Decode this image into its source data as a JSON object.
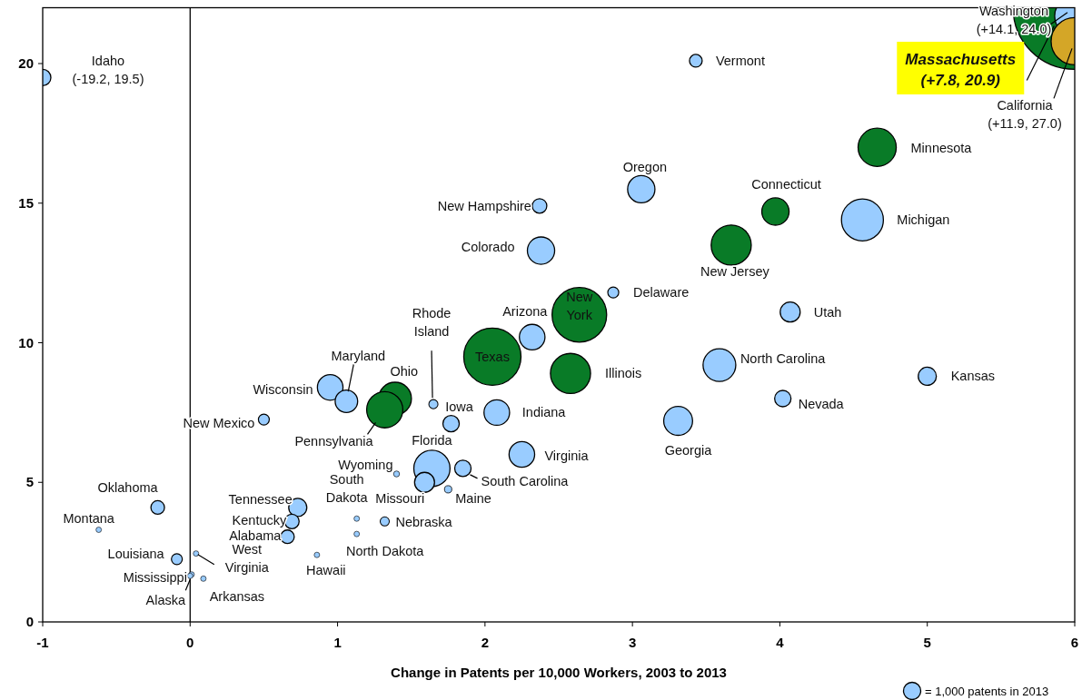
{
  "chart_data": {
    "type": "bubble",
    "xlabel": "Change in Patents per 10,000 Workers, 2003 to 2013",
    "xlim": [
      -1,
      6
    ],
    "xticks": [
      -1,
      0,
      1,
      2,
      3,
      4,
      5,
      6
    ],
    "ylim": [
      0,
      22
    ],
    "yticks": [
      0,
      5,
      10,
      15,
      20
    ],
    "ref_lines": [
      {
        "axis": "x",
        "value": 0,
        "color": "#000000"
      }
    ],
    "size_legend": [
      {
        "value": 1000,
        "label": "=  1,000 patents in 2013"
      }
    ],
    "series": [
      {
        "x": [
          6,
          6,
          6,
          -1,
          3.43,
          3.06,
          2.37,
          2.38,
          2.87,
          2.64,
          2.32,
          2.05,
          4.66,
          3.97,
          3.67,
          4.56,
          4.07,
          2.58,
          3.59,
          5.0,
          4.02,
          3.31,
          0.95,
          1.06,
          1.39,
          1.32,
          1.65,
          1.77,
          2.08,
          0.5,
          2.25,
          1.64,
          1.85,
          1.59,
          1.75,
          1.4,
          -0.22,
          -0.62,
          0.73,
          0.69,
          0.66,
          1.13,
          1.32,
          1.13,
          0.86,
          -0.09,
          0.04,
          0.01,
          0.09,
          0.0
        ],
        "values": [
          22,
          21.7,
          20.8,
          19.5,
          20.1,
          15.5,
          14.9,
          13.3,
          11.8,
          11.0,
          10.2,
          9.5,
          17.0,
          14.7,
          13.5,
          14.4,
          11.1,
          8.9,
          9.2,
          8.8,
          8.0,
          7.2,
          8.4,
          7.9,
          8.0,
          7.6,
          7.8,
          7.1,
          7.5,
          7.25,
          6.0,
          5.5,
          5.5,
          5.0,
          4.75,
          5.3,
          4.1,
          3.3,
          4.1,
          3.6,
          3.05,
          3.7,
          3.6,
          3.15,
          2.4,
          2.25,
          2.45,
          1.7,
          1.55,
          1.65
        ],
        "sizes": [
          51000,
          5400,
          7500,
          900,
          540,
          2500,
          710,
          2500,
          400,
          10000,
          2200,
          11000,
          4900,
          2500,
          5400,
          5900,
          1340,
          5400,
          3600,
          1100,
          900,
          2800,
          2200,
          1700,
          3600,
          4400,
          280,
          900,
          2200,
          400,
          2200,
          4400,
          900,
          1340,
          180,
          120,
          620,
          100,
          1100,
          710,
          620,
          100,
          280,
          100,
          100,
          400,
          100,
          100,
          100,
          100
        ],
        "colors": [
          "#097b27",
          "#99ccff",
          "#d4a627",
          "#99ccff",
          "#99ccff",
          "#99ccff",
          "#99ccff",
          "#99ccff",
          "#99ccff",
          "#097b27",
          "#99ccff",
          "#097b27",
          "#097b27",
          "#097b27",
          "#097b27",
          "#99ccff",
          "#99ccff",
          "#097b27",
          "#99ccff",
          "#99ccff",
          "#99ccff",
          "#99ccff",
          "#99ccff",
          "#99ccff",
          "#097b27",
          "#097b27",
          "#99ccff",
          "#99ccff",
          "#99ccff",
          "#99ccff",
          "#99ccff",
          "#99ccff",
          "#99ccff",
          "#99ccff",
          "#99ccff",
          "#99ccff",
          "#99ccff",
          "#99ccff",
          "#99ccff",
          "#99ccff",
          "#99ccff",
          "#99ccff",
          "#99ccff",
          "#99ccff",
          "#99ccff",
          "#99ccff",
          "#99ccff",
          "#99ccff",
          "#99ccff",
          "#99ccff"
        ]
      }
    ],
    "annotations": [
      {
        "text": "Massachusetts\n(+7.8, 20.9)",
        "x": 5.86,
        "y": 21.35
      },
      {
        "text": "Washington\n(+14.1, 24.0)",
        "x": 6,
        "y": 21.7
      },
      {
        "text": "California\n(+11.9, 27.0)",
        "x": 6,
        "y": 20.8
      },
      {
        "text": "Idaho\n(-19.2, 19.5)",
        "x": -1,
        "y": 19.5
      },
      {
        "text": "Vermont",
        "x": 3.43,
        "y": 20.1
      },
      {
        "text": "Oregon",
        "x": 3.06,
        "y": 15.5
      },
      {
        "text": "New Hampshire",
        "x": 2.37,
        "y": 14.9
      },
      {
        "text": "Colorado",
        "x": 2.38,
        "y": 13.3
      },
      {
        "text": "Delaware",
        "x": 2.87,
        "y": 11.8
      },
      {
        "text": "New\nYork",
        "x": 2.64,
        "y": 11.0
      },
      {
        "text": "Arizona",
        "x": 2.32,
        "y": 10.2
      },
      {
        "text": "Texas",
        "x": 2.05,
        "y": 9.5
      },
      {
        "text": "Minnesota",
        "x": 4.66,
        "y": 17.0
      },
      {
        "text": "Connecticut",
        "x": 3.97,
        "y": 14.7
      },
      {
        "text": "New Jersey",
        "x": 3.67,
        "y": 13.5
      },
      {
        "text": "Michigan",
        "x": 4.56,
        "y": 14.4
      },
      {
        "text": "Utah",
        "x": 4.07,
        "y": 11.1
      },
      {
        "text": "Illinois",
        "x": 2.58,
        "y": 8.9
      },
      {
        "text": "North Carolina",
        "x": 3.59,
        "y": 9.2
      },
      {
        "text": "Kansas",
        "x": 5.0,
        "y": 8.8
      },
      {
        "text": "Nevada",
        "x": 4.02,
        "y": 8.0
      },
      {
        "text": "Georgia",
        "x": 3.31,
        "y": 7.2
      },
      {
        "text": "Wisconsin",
        "x": 0.95,
        "y": 8.4
      },
      {
        "text": "Maryland",
        "x": 1.06,
        "y": 7.9
      },
      {
        "text": "Ohio",
        "x": 1.39,
        "y": 8.0
      },
      {
        "text": "Pennsylvania",
        "x": 1.32,
        "y": 7.6
      },
      {
        "text": "Rhode\nIsland",
        "x": 1.65,
        "y": 7.8
      },
      {
        "text": "Iowa",
        "x": 1.77,
        "y": 7.1
      },
      {
        "text": "Indiana",
        "x": 2.08,
        "y": 7.5
      },
      {
        "text": "New Mexico",
        "x": 0.5,
        "y": 7.25
      },
      {
        "text": "Virginia",
        "x": 2.25,
        "y": 6.0
      },
      {
        "text": "Florida",
        "x": 1.64,
        "y": 5.5
      },
      {
        "text": "South Carolina",
        "x": 1.85,
        "y": 5.5
      },
      {
        "text": "Missouri",
        "x": 1.59,
        "y": 5.0
      },
      {
        "text": "Maine",
        "x": 1.75,
        "y": 4.75
      },
      {
        "text": "Wyoming",
        "x": 1.4,
        "y": 5.3
      },
      {
        "text": "Oklahoma",
        "x": -0.22,
        "y": 4.1
      },
      {
        "text": "Montana",
        "x": -0.62,
        "y": 3.3
      },
      {
        "text": "Tennessee",
        "x": 0.73,
        "y": 4.1
      },
      {
        "text": "Kentucky",
        "x": 0.69,
        "y": 3.6
      },
      {
        "text": "Alabama",
        "x": 0.66,
        "y": 3.05
      },
      {
        "text": "South\nDakota",
        "x": 1.13,
        "y": 3.7
      },
      {
        "text": "Nebraska",
        "x": 1.32,
        "y": 3.6
      },
      {
        "text": "North Dakota",
        "x": 1.13,
        "y": 3.15
      },
      {
        "text": "Hawaii",
        "x": 0.86,
        "y": 2.4
      },
      {
        "text": "Louisiana",
        "x": -0.09,
        "y": 2.25
      },
      {
        "text": "West\nVirginia",
        "x": 0.04,
        "y": 2.45
      },
      {
        "text": "Mississippi",
        "x": 0.01,
        "y": 1.7
      },
      {
        "text": "Arkansas",
        "x": 0.09,
        "y": 1.55
      },
      {
        "text": "Alaska",
        "x": 0.0,
        "y": 1.65
      }
    ]
  }
}
